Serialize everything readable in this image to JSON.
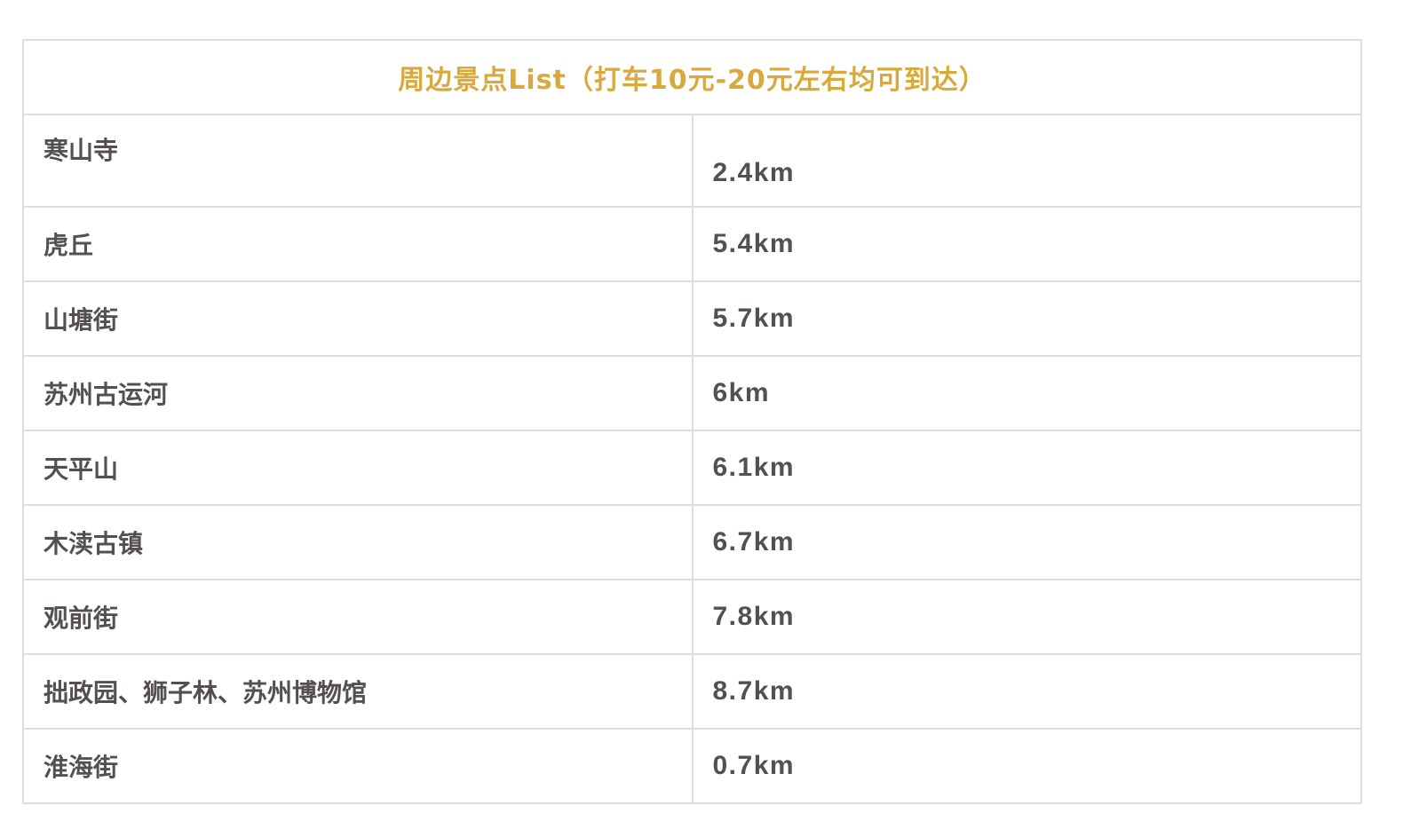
{
  "title": "周边景点List（打车10元-20元左右均可到达）",
  "colors": {
    "title": "#d8a93c",
    "text": "#555050",
    "border": "#dedede"
  },
  "rows": [
    {
      "name": "寒山寺",
      "distance": "2.4km"
    },
    {
      "name": "虎丘",
      "distance": "5.4km"
    },
    {
      "name": "山塘街",
      "distance": "5.7km"
    },
    {
      "name": "苏州古运河",
      "distance": "6km"
    },
    {
      "name": "天平山",
      "distance": "6.1km"
    },
    {
      "name": "木渎古镇",
      "distance": "6.7km"
    },
    {
      "name": "观前街",
      "distance": "7.8km"
    },
    {
      "name": "拙政园、狮子林、苏州博物馆",
      "distance": "8.7km"
    },
    {
      "name": "淮海街",
      "distance": "0.7km"
    }
  ]
}
